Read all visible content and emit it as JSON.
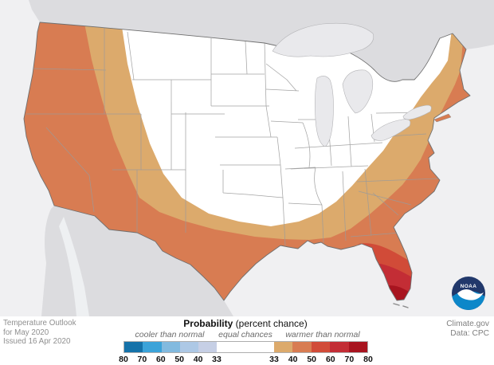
{
  "attribution": {
    "line1": "Temperature Outlook",
    "line2": "for May 2020",
    "line3": "Issued 16 Apr 2020"
  },
  "source": {
    "line1": "Climate.gov",
    "line2": "Data: CPC"
  },
  "logo": {
    "text": "NOAA"
  },
  "legend": {
    "title": "Probability",
    "title_suffix": " (percent chance)",
    "cooler_label": "cooler than normal",
    "equal_label": "equal chances",
    "warmer_label": "warmer than normal",
    "cool_colors": [
      "#1572a9",
      "#3ba3d9",
      "#82badf",
      "#adc8e5",
      "#c6cfe5"
    ],
    "equal_color": "#ffffff",
    "warm_colors": [
      "#dcaa6c",
      "#d87c52",
      "#d14b38",
      "#c32d35",
      "#a8141f"
    ],
    "cool_ticks": [
      "80",
      "70",
      "60",
      "50",
      "40",
      "33"
    ],
    "warm_ticks": [
      "33",
      "40",
      "50",
      "60",
      "70",
      "80"
    ]
  },
  "colors": {
    "ocean": "#f0f0f2",
    "neighbor_land": "#dcdcdf",
    "baja_gulf": "#eef0f2",
    "lakes": "#e9e9ec",
    "conus_fill": "#ffffff",
    "state_border": "#9a9a9a",
    "coast_outline": "#6f6f6f"
  },
  "map": {
    "area": "Contiguous United States",
    "regions": [
      {
        "category": "equal chances",
        "probability": "33",
        "area": "Northern Plains, Midwest, Ohio and Tennessee valleys, interior Northeast",
        "color": "#ffffff"
      },
      {
        "category": "warmer than normal",
        "probability": "33-40",
        "area": "Inner band: interior Northwest and Rockies through central Texas and Gulf states into the Mid-Atlantic",
        "color": "#dcaa6c"
      },
      {
        "category": "warmer than normal",
        "probability": "40-50",
        "area": "West Coast, Southwest, southern Texas, Gulf Coast, Southeast and Atlantic coastal strip",
        "color": "#d87c52"
      },
      {
        "category": "warmer than normal",
        "probability": "50-60",
        "area": "Northern Florida peninsula",
        "color": "#d14b38"
      },
      {
        "category": "warmer than normal",
        "probability": "60-70",
        "area": "Central and southern Florida",
        "color": "#c32d35"
      },
      {
        "category": "warmer than normal",
        "probability": "70-80",
        "area": "Far southern Florida",
        "color": "#a8141f"
      }
    ]
  }
}
